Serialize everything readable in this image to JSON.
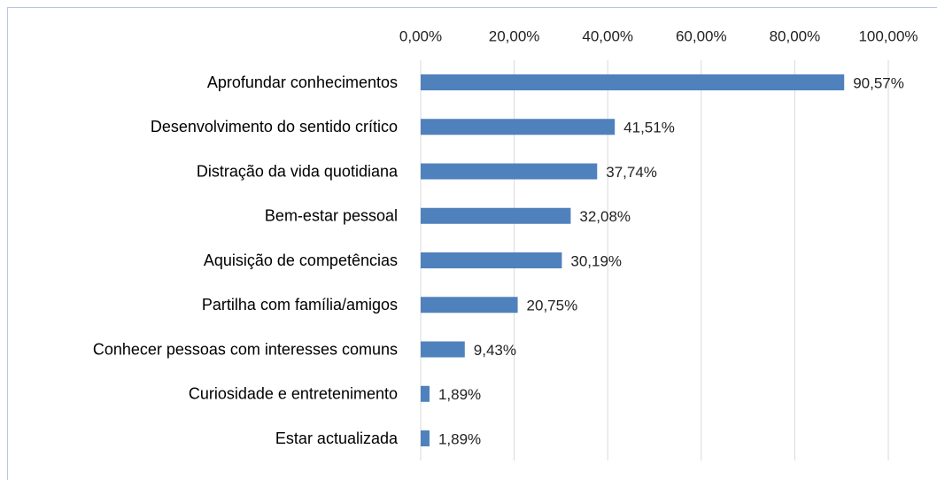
{
  "chart_data": {
    "type": "bar",
    "orientation": "horizontal",
    "categories": [
      "Aprofundar conhecimentos",
      "Desenvolvimento do sentido crítico",
      "Distração da vida quotidiana",
      "Bem-estar pessoal",
      "Aquisição de competências",
      "Partilha com família/amigos",
      "Conhecer pessoas com interesses comuns",
      "Curiosidade e entretenimento",
      "Estar actualizada"
    ],
    "values": [
      90.57,
      41.51,
      37.74,
      32.08,
      30.19,
      20.75,
      9.43,
      1.89,
      1.89
    ],
    "value_labels": [
      "90,57%",
      "41,51%",
      "37,74%",
      "32,08%",
      "30,19%",
      "20,75%",
      "9,43%",
      "1,89%",
      "1,89%"
    ],
    "color": "#4f81bd",
    "xlim": [
      0,
      100
    ],
    "xticks": [
      {
        "value": 0,
        "label": "0,00%"
      },
      {
        "value": 20,
        "label": "20,00%"
      },
      {
        "value": 40,
        "label": "40,00%"
      },
      {
        "value": 60,
        "label": "60,00%"
      },
      {
        "value": 80,
        "label": "80,00%"
      },
      {
        "value": 100,
        "label": "100,00%"
      }
    ],
    "grid": true
  }
}
